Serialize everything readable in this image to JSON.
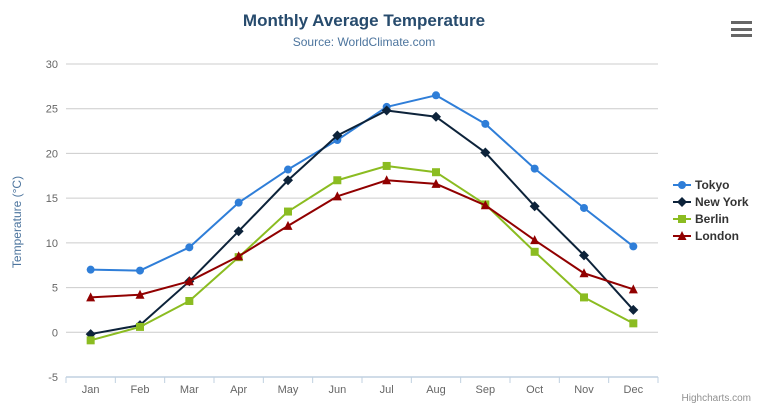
{
  "chart_data": {
    "type": "line",
    "title": "Monthly Average Temperature",
    "subtitle": "Source: WorldClimate.com",
    "categories": [
      "Jan",
      "Feb",
      "Mar",
      "Apr",
      "May",
      "Jun",
      "Jul",
      "Aug",
      "Sep",
      "Oct",
      "Nov",
      "Dec"
    ],
    "series": [
      {
        "name": "Tokyo",
        "color": "#2f7ed8",
        "marker": "circle",
        "values": [
          7.0,
          6.9,
          9.5,
          14.5,
          18.2,
          21.5,
          25.2,
          26.5,
          23.3,
          18.3,
          13.9,
          9.6
        ]
      },
      {
        "name": "New York",
        "color": "#0d233a",
        "marker": "diamond",
        "values": [
          -0.2,
          0.8,
          5.7,
          11.3,
          17.0,
          22.0,
          24.8,
          24.1,
          20.1,
          14.1,
          8.6,
          2.5
        ]
      },
      {
        "name": "Berlin",
        "color": "#8bbc21",
        "marker": "square",
        "values": [
          -0.9,
          0.6,
          3.5,
          8.4,
          13.5,
          17.0,
          18.6,
          17.9,
          14.3,
          9.0,
          3.9,
          1.0
        ]
      },
      {
        "name": "London",
        "color": "#910000",
        "marker": "triangle",
        "values": [
          3.9,
          4.2,
          5.7,
          8.5,
          11.9,
          15.2,
          17.0,
          16.6,
          14.2,
          10.3,
          6.6,
          4.8
        ]
      }
    ],
    "xlabel": "",
    "ylabel": "Temperature (°C)",
    "ylim": [
      -5,
      30
    ],
    "y_ticks": [
      -5,
      0,
      5,
      10,
      15,
      20,
      25,
      30
    ],
    "grid": true,
    "legend_position": "right"
  },
  "theme": {
    "grid_color": "#cccccc",
    "axis_line_color": "#c0d0e0",
    "tick_label_color": "#666666",
    "legend_text_color": "#333333",
    "title_color": "#274b6d",
    "subtitle_color": "#4d759e"
  },
  "ui": {
    "credits_label": "Highcharts.com",
    "menu_icon": "hamburger-menu-icon"
  }
}
